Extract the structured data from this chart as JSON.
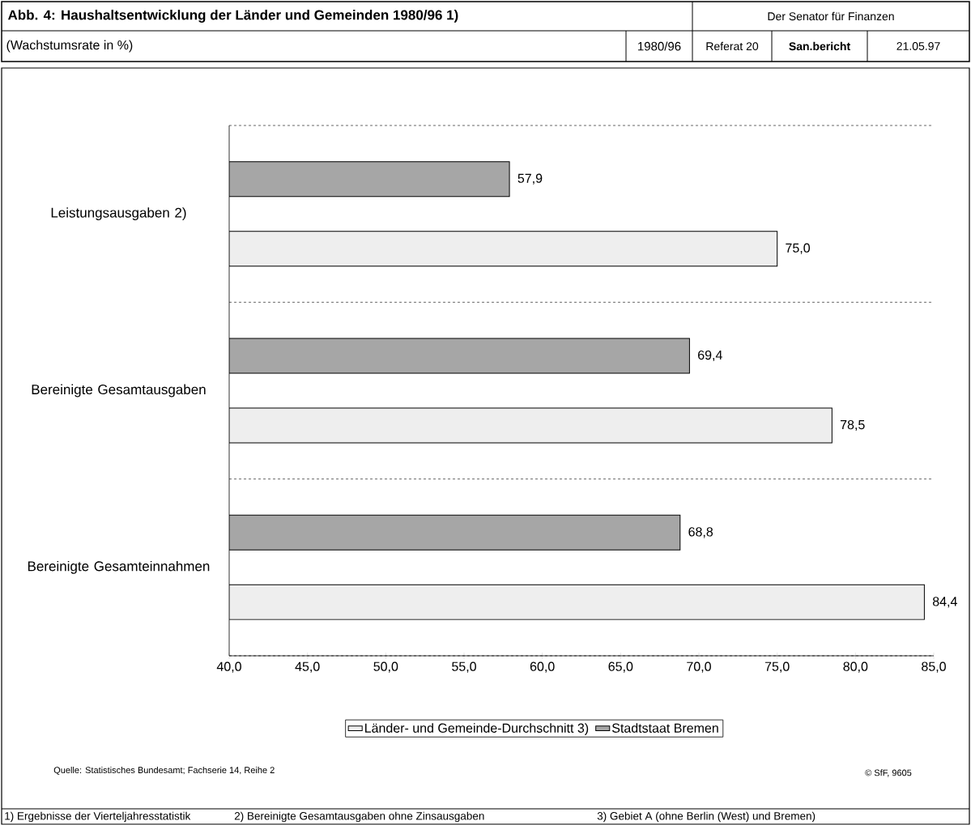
{
  "chart_data": {
    "type": "bar",
    "orientation": "horizontal",
    "title": "Abb. 4: Haushaltsentwicklung der Länder und Gemeinden 1980/96 1)",
    "subtitle": "(Wachstumsrate in %)",
    "categories": [
      "Leistungsausgaben 2)",
      "Bereinigte Gesamtausgaben",
      "Bereinigte Gesamteinnahmen"
    ],
    "series": [
      {
        "name": "Länder- und Gemeinde-Durchschnitt 3)",
        "color": "#eeeeee",
        "values": [
          75.0,
          78.5,
          84.4
        ],
        "value_labels": [
          "75,0",
          "78,5",
          "84,4"
        ]
      },
      {
        "name": "Stadtstaat Bremen",
        "color": "#a6a6a6",
        "values": [
          57.9,
          69.4,
          68.8
        ],
        "value_labels": [
          "57,9",
          "69,4",
          "68,8"
        ]
      }
    ],
    "xlim": [
      40,
      85
    ],
    "xticks": [
      {
        "value": 40,
        "label": "40,0"
      },
      {
        "value": 45,
        "label": "45,0"
      },
      {
        "value": 50,
        "label": "50,0"
      },
      {
        "value": 55,
        "label": "55,0"
      },
      {
        "value": 60,
        "label": "60,0"
      },
      {
        "value": 65,
        "label": "65,0"
      },
      {
        "value": 70,
        "label": "70,0"
      },
      {
        "value": 75,
        "label": "75,0"
      },
      {
        "value": 80,
        "label": "80,0"
      },
      {
        "value": 85,
        "label": "85,0"
      }
    ],
    "grid": "y",
    "legend": "bottom",
    "annotations": [
      "Der Senator für Finanzen",
      "1980/96",
      "Referat 20",
      "San.bericht",
      "21.05.97",
      "Quelle: Statistisches Bundesamt; Fachserie 14, Reihe 2",
      "© SfF, 9605",
      "1) Ergebnisse der Vierteljahresstatistik",
      "2) Bereinigte Gesamtausgaben ohne Zinsausgaben",
      "3) Gebiet A (ohne Berlin (West) und Bremen)"
    ]
  }
}
